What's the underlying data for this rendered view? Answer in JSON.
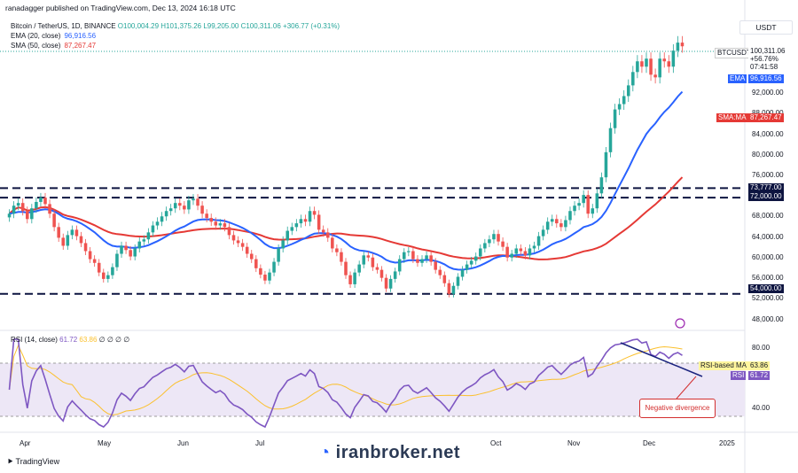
{
  "header": {
    "published_line": "ranadagger published on TradingView.com, Dec 13, 2024 16:18 UTC",
    "symbol_line": "Bitcoin / TetherUS, 1D, BINANCE",
    "ohlc": "O100,004.29 H101,375.26 L99,205.00 C100,311.06 +306.77 (+0.31%)"
  },
  "legend": {
    "ema_label": "EMA (20, close)",
    "ema_value": "96,916.56",
    "sma_label": "SMA (50, close)",
    "sma_value": "87,267.47"
  },
  "axis": {
    "currency": "USDT",
    "price_ticks": [
      "92,000.00",
      "88,000.00",
      "84,000.00",
      "80,000.00",
      "76,000.00",
      "68,000.00",
      "64,000.00",
      "60,000.00",
      "56,000.00",
      "52,000.00",
      "48,000.00"
    ],
    "months": [
      "Apr",
      "May",
      "Jun",
      "Jul",
      "Oct",
      "Nov",
      "Dec",
      "2025"
    ],
    "rsi_ticks": [
      "80.00",
      "40.00"
    ]
  },
  "tags": {
    "btc_symbol": "BTCUSDT",
    "btc_price": "100,311.06",
    "btc_change": "+56.76%",
    "btc_timer": "07:41:58",
    "ema_tag": "EMA",
    "ema_val": "96,916.56",
    "sma_tag": "SMA:MA",
    "sma_val": "87,267.47",
    "level_73777": "73,777.00",
    "level_72000": "72,000.00",
    "level_54000": "54,000.00",
    "rsi_ma_label": "RSI-based MA",
    "rsi_ma_val": "63.86",
    "rsi_label": "RSI",
    "rsi_val": "61.72"
  },
  "rsi_legend": {
    "label": "RSI (14, close)",
    "rsi": "61.72",
    "ma": "63.86",
    "extra": "∅ ∅ ∅ ∅"
  },
  "annotation": "Negative divergence",
  "footer": {
    "logo": "TradingView",
    "watermark": "iranbroker.net"
  },
  "colors": {
    "up": "#26a69a",
    "down": "#ef5350",
    "ema": "#2962ff",
    "sma": "#e53935",
    "rsi": "#7e57c2",
    "rsi_ma": "#fbc02d",
    "levels": "#0d1440"
  },
  "chart_data": {
    "type": "candlestick",
    "ylim": [
      48000,
      104000
    ],
    "horizontal_levels": [
      73777,
      72000,
      54000
    ],
    "closes_daily_approx": [
      69000,
      70500,
      71000,
      69500,
      68000,
      70000,
      71200,
      72000,
      70800,
      69000,
      66500,
      64500,
      63000,
      65000,
      66000,
      64800,
      63500,
      62000,
      60500,
      59800,
      58000,
      56800,
      57500,
      59000,
      61500,
      63000,
      62200,
      61000,
      62500,
      63800,
      64200,
      65500,
      66800,
      67500,
      68500,
      69500,
      70000,
      71000,
      70500,
      69800,
      71500,
      71800,
      70500,
      69000,
      68200,
      67500,
      66800,
      67200,
      66500,
      65000,
      64000,
      63500,
      62800,
      61500,
      60500,
      58800,
      57600,
      56500,
      58000,
      60000,
      62500,
      64000,
      65800,
      66500,
      67200,
      68000,
      67500,
      69500,
      68800,
      66000,
      65500,
      64500,
      62500,
      61800,
      60000,
      57500,
      55800,
      58000,
      59500,
      61200,
      60800,
      59000,
      58500,
      57000,
      55000,
      56800,
      58200,
      60500,
      61800,
      62000,
      60500,
      59800,
      60500,
      61200,
      60000,
      58500,
      57500,
      56000,
      54000,
      55500,
      57200,
      58500,
      59500,
      60200,
      61000,
      62500,
      63500,
      64200,
      65200,
      63800,
      62800,
      60800,
      61500,
      62500,
      62000,
      61200,
      62500,
      63000,
      64800,
      66000,
      67500,
      68000,
      67200,
      66500,
      67800,
      69500,
      70500,
      71000,
      72500,
      69000,
      70000,
      72800,
      75800,
      80500,
      85000,
      88500,
      89500,
      91000,
      93000,
      95500,
      97500,
      96500,
      98000,
      95000,
      94500,
      98000,
      97500,
      96500,
      99500,
      101000,
      100311
    ],
    "ema20_end": 96916.56,
    "sma50_end": 87267.47,
    "rsi_last": 61.72,
    "rsi_ma_last": 63.86,
    "rsi_levels": [
      80,
      40
    ]
  }
}
